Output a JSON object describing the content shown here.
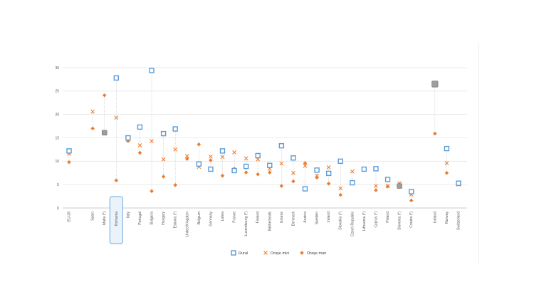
{
  "chart_data": {
    "type": "scatter",
    "ylim": [
      0,
      30
    ],
    "yticks": [
      0,
      5,
      10,
      15,
      20,
      25,
      30
    ],
    "grid": true,
    "legend_position": "bottom",
    "highlight_category": "Romania",
    "categories": [
      "EU-28",
      "Spain",
      "Malta (*)",
      "Romania",
      "Italy",
      "Portugal",
      "Bulgaria",
      "Hungary",
      "Estonia (*)",
      "United Kingdom",
      "Belgium",
      "Germany",
      "Latvia",
      "France",
      "Luxembourg (*)",
      "Finland",
      "Netherlands",
      "Greece",
      "Denmark",
      "Austria",
      "Sweden",
      "Ireland",
      "Slovakia (*)",
      "Czech Republic",
      "Lithuania (*)",
      "Cyprus (*)",
      "Poland",
      "Slovenia (*)",
      "Croatia (*)",
      "Iceland",
      "Norway",
      "Switzerland"
    ],
    "series": [
      {
        "name": "Rural",
        "marker": "square",
        "color": "#5b9bd5",
        "values": [
          12.2,
          null,
          null,
          27.8,
          15.0,
          17.3,
          29.4,
          15.9,
          16.9,
          null,
          9.4,
          8.3,
          12.2,
          8.0,
          8.9,
          11.2,
          9.1,
          13.3,
          10.7,
          4.1,
          8.1,
          7.4,
          10.0,
          5.4,
          8.3,
          8.4,
          6.1,
          null,
          3.5,
          null,
          12.7,
          5.3
        ]
      },
      {
        "name": "Orașe mici",
        "marker": "cross",
        "color": "#ed7d31",
        "values": [
          11.6,
          20.6,
          null,
          19.3,
          14.6,
          13.4,
          14.3,
          10.4,
          12.5,
          11.1,
          8.8,
          11.0,
          10.9,
          11.9,
          10.6,
          10.4,
          8.4,
          9.5,
          7.5,
          9.0,
          6.9,
          8.7,
          4.2,
          7.8,
          null,
          4.7,
          4.7,
          5.3,
          2.9,
          null,
          9.6,
          5.0
        ]
      },
      {
        "name": "Orașe mari",
        "marker": "diamond",
        "color": "#ed7d31",
        "values": [
          9.8,
          17.0,
          24.1,
          5.9,
          14.3,
          11.8,
          3.6,
          6.7,
          4.9,
          10.5,
          13.6,
          10.2,
          6.9,
          8.4,
          7.6,
          7.2,
          7.6,
          4.7,
          5.7,
          9.6,
          6.5,
          5.2,
          2.8,
          5.2,
          null,
          3.8,
          4.6,
          4.7,
          1.6,
          15.9,
          7.5,
          5.2
        ]
      }
    ],
    "combined_points": [
      {
        "category": "Malta (*)",
        "value": 16.1
      },
      {
        "category": "Iceland",
        "value": 26.5
      },
      {
        "category": "Slovenia (*)",
        "value": 4.7
      }
    ]
  }
}
